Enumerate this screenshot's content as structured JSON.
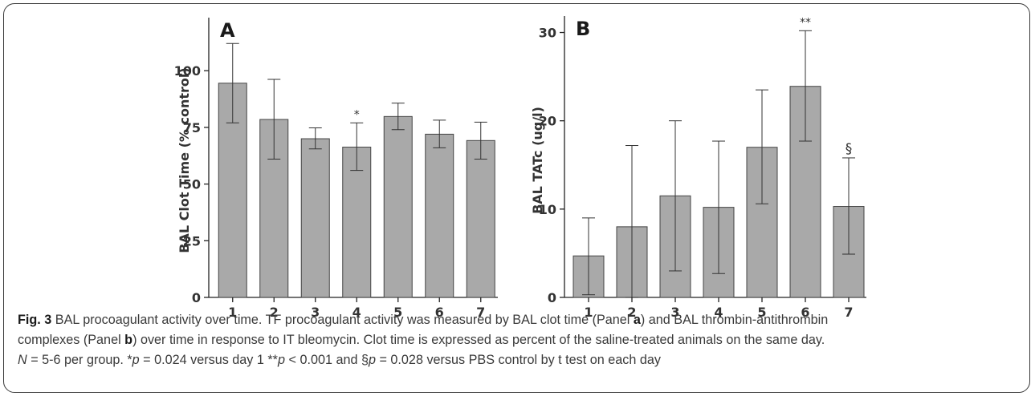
{
  "chart_data": [
    {
      "type": "bar",
      "panel_label": "A",
      "ylabel": "BAL Clot Time (% control)",
      "categories": [
        "1",
        "2",
        "3",
        "4",
        "5",
        "6",
        "7"
      ],
      "values": [
        94.5,
        78.5,
        70,
        66.3,
        79.8,
        72,
        69.2
      ],
      "error_upper": [
        112,
        96.2,
        74.8,
        77,
        85.7,
        78.2,
        77.3
      ],
      "error_lower": [
        77,
        61,
        65.5,
        56,
        74,
        66,
        61
      ],
      "ylim": [
        0,
        122
      ],
      "yticks": [
        0,
        25,
        50,
        75,
        100
      ],
      "annotations": [
        {
          "category": "4",
          "text": "*"
        }
      ],
      "bar_color": "#a9a9a9"
    },
    {
      "type": "bar",
      "panel_label": "B",
      "ylabel": "BAL TATc (ug/l)",
      "categories": [
        "1",
        "2",
        "3",
        "4",
        "5",
        "6",
        "7"
      ],
      "values": [
        4.7,
        8,
        11.5,
        10.2,
        17,
        23.9,
        10.3
      ],
      "error_upper": [
        9,
        17.2,
        20,
        17.7,
        23.5,
        30.2,
        15.8
      ],
      "error_lower": [
        0.3,
        0,
        3,
        2.7,
        10.6,
        17.7,
        4.9
      ],
      "ylim": [
        0,
        31.5
      ],
      "yticks": [
        0,
        10,
        20,
        30
      ],
      "annotations": [
        {
          "category": "6",
          "text": "**"
        },
        {
          "category": "7",
          "text": "§"
        }
      ],
      "bar_color": "#a9a9a9"
    }
  ],
  "caption": {
    "fig_label": "Fig. 3",
    "line1_a": " BAL procoagulant activity over time. TF procoagulant activity was measured by BAL clot time (Panel ",
    "panel_a": "a",
    "line1_b": ") and BAL thrombin-antithrombin",
    "line2_a": "complexes (Panel ",
    "panel_b": "b",
    "line2_b": ") over time in response to IT bleomycin. Clot time is expressed as percent of the saline-treated animals on the same day.",
    "line3_n": "N",
    "line3_a": " = 5-6 per group. *",
    "line3_p1": "p",
    "line3_b": " = 0.024 versus day 1 **",
    "line3_p2": "p",
    "line3_c": " < 0.001 and §",
    "line3_p3": "p",
    "line3_d": " = 0.028 versus PBS control by t test on each day"
  }
}
